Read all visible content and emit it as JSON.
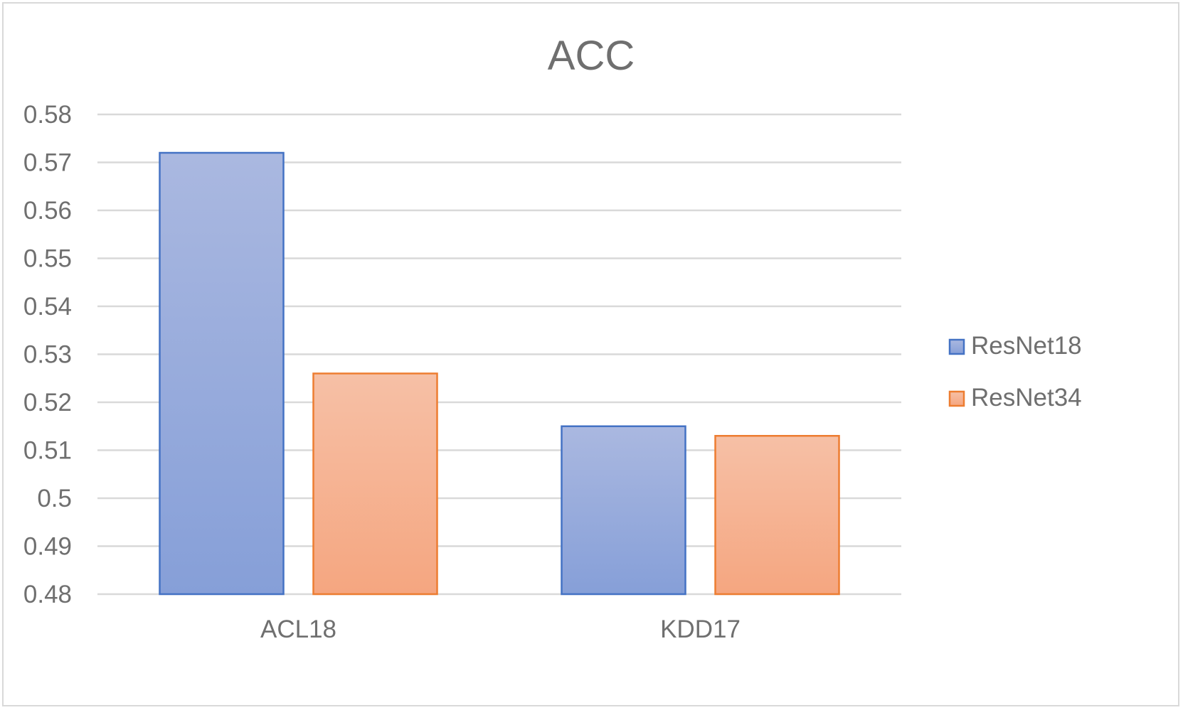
{
  "chart_data": {
    "type": "bar",
    "title": "ACC",
    "categories": [
      "ACL18",
      "KDD17"
    ],
    "series": [
      {
        "name": "ResNet18",
        "values": [
          0.572,
          0.515
        ],
        "fill_top": "#aab8e0",
        "fill_bottom": "#869fd8",
        "stroke": "#4472c4"
      },
      {
        "name": "ResNet34",
        "values": [
          0.526,
          0.513
        ],
        "fill_top": "#f6c0a6",
        "fill_bottom": "#f5a680",
        "stroke": "#ed7d31"
      }
    ],
    "ylim": [
      0.48,
      0.58
    ],
    "yticks": [
      "0.48",
      "0.49",
      "0.5",
      "0.51",
      "0.52",
      "0.53",
      "0.54",
      "0.55",
      "0.56",
      "0.57",
      "0.58"
    ],
    "grid": true,
    "legend": "right",
    "xlabel": "",
    "ylabel": ""
  }
}
